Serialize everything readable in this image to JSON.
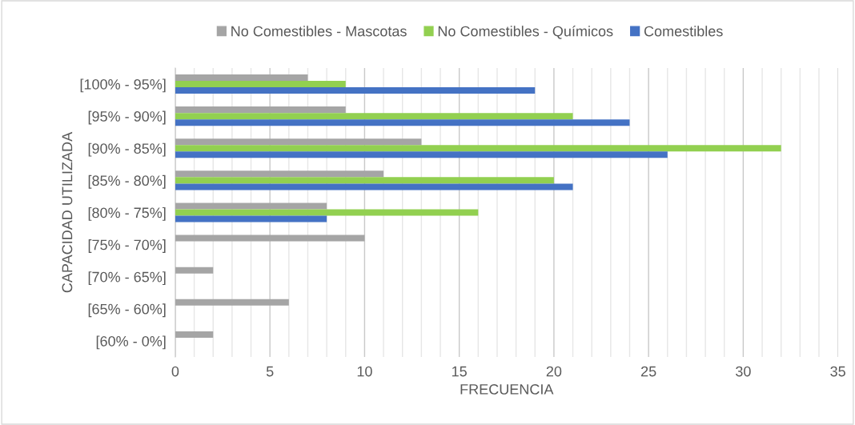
{
  "chart_data": {
    "type": "bar",
    "orientation": "horizontal",
    "xlabel": "FRECUENCIA",
    "ylabel": "CAPACIDAD UTILIZADA",
    "categories": [
      "[100% - 95%]",
      "[95% - 90%]",
      "[90% - 85%]",
      "[85% - 80%]",
      "[80% - 75%]",
      "[75% - 70%]",
      "[70% - 65%]",
      "[65% - 60%]",
      "[60% - 0%]"
    ],
    "series": [
      {
        "name": "No Comestibles - Mascotas",
        "color": "#a5a5a5",
        "values": [
          7,
          9,
          13,
          11,
          8,
          10,
          2,
          6,
          2
        ]
      },
      {
        "name": "No Comestibles - Químicos",
        "color": "#92d050",
        "values": [
          9,
          21,
          32,
          20,
          16,
          null,
          null,
          null,
          null
        ]
      },
      {
        "name": "Comestibles",
        "color": "#4472c4",
        "values": [
          19,
          24,
          26,
          21,
          8,
          null,
          null,
          null,
          null
        ]
      }
    ],
    "xlim": [
      0,
      35
    ],
    "xticks": [
      0,
      {
        "value": 1,
        "label": null
      },
      {
        "value": 2,
        "label": null
      },
      {
        "value": 3,
        "label": null
      },
      {
        "value": 4,
        "label": null
      },
      5,
      {
        "value": 6,
        "label": null
      },
      {
        "value": 7,
        "label": null
      },
      {
        "value": 8,
        "label": null
      },
      {
        "value": 9,
        "label": null
      },
      10,
      {
        "value": 11,
        "label": null
      },
      {
        "value": 12,
        "label": null
      },
      {
        "value": 13,
        "label": null
      },
      {
        "value": 14,
        "label": null
      },
      15,
      {
        "value": 16,
        "label": null
      },
      {
        "value": 17,
        "label": null
      },
      {
        "value": 18,
        "label": null
      },
      {
        "value": 19,
        "label": null
      },
      20,
      {
        "value": 21,
        "label": null
      },
      {
        "value": 22,
        "label": null
      },
      {
        "value": 23,
        "label": null
      },
      {
        "value": 24,
        "label": null
      },
      25,
      {
        "value": 26,
        "label": null
      },
      {
        "value": 27,
        "label": null
      },
      {
        "value": 28,
        "label": null
      },
      {
        "value": 29,
        "label": null
      },
      30,
      {
        "value": 31,
        "label": null
      },
      {
        "value": 32,
        "label": null
      },
      {
        "value": 33,
        "label": null
      },
      {
        "value": 34,
        "label": null
      },
      35
    ],
    "grid": "x",
    "legend": "top"
  }
}
